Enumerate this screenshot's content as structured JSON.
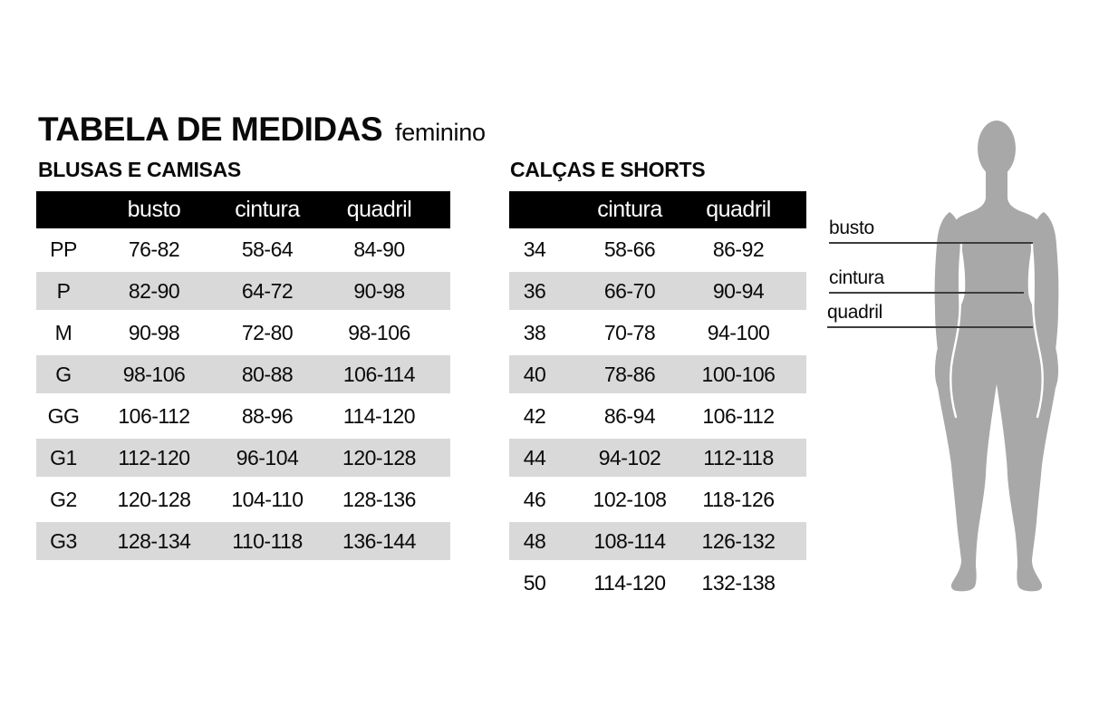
{
  "title": {
    "main": "TABELA DE MEDIDAS",
    "sub": "feminino"
  },
  "colors": {
    "header_bar": "#000000",
    "stripe": "#d9d9d9",
    "silhouette": "#a8a8a8",
    "measure_line": "#3d3d3d",
    "text": "#0a0a0a"
  },
  "tables": [
    {
      "section": "BLUSAS E CAMISAS",
      "columns": [
        "",
        "busto",
        "cintura",
        "quadril"
      ],
      "rows": [
        [
          "PP",
          "76-82",
          "58-64",
          "84-90"
        ],
        [
          "P",
          "82-90",
          "64-72",
          "90-98"
        ],
        [
          "M",
          "90-98",
          "72-80",
          "98-106"
        ],
        [
          "G",
          "98-106",
          "80-88",
          "106-114"
        ],
        [
          "GG",
          "106-112",
          "88-96",
          "114-120"
        ],
        [
          "G1",
          "112-120",
          "96-104",
          "120-128"
        ],
        [
          "G2",
          "120-128",
          "104-110",
          "128-136"
        ],
        [
          "G3",
          "128-134",
          "110-118",
          "136-144"
        ]
      ]
    },
    {
      "section": "CALÇAS E SHORTS",
      "columns": [
        "",
        "cintura",
        "quadril"
      ],
      "rows": [
        [
          "34",
          "58-66",
          "86-92"
        ],
        [
          "36",
          "66-70",
          "90-94"
        ],
        [
          "38",
          "70-78",
          "94-100"
        ],
        [
          "40",
          "78-86",
          "100-106"
        ],
        [
          "42",
          "86-94",
          "106-112"
        ],
        [
          "44",
          "94-102",
          "112-118"
        ],
        [
          "46",
          "102-108",
          "118-126"
        ],
        [
          "48",
          "108-114",
          "126-132"
        ],
        [
          "50",
          "114-120",
          "132-138"
        ]
      ]
    }
  ],
  "figure": {
    "labels": [
      {
        "text": "busto"
      },
      {
        "text": "cintura"
      },
      {
        "text": "quadril"
      }
    ]
  }
}
